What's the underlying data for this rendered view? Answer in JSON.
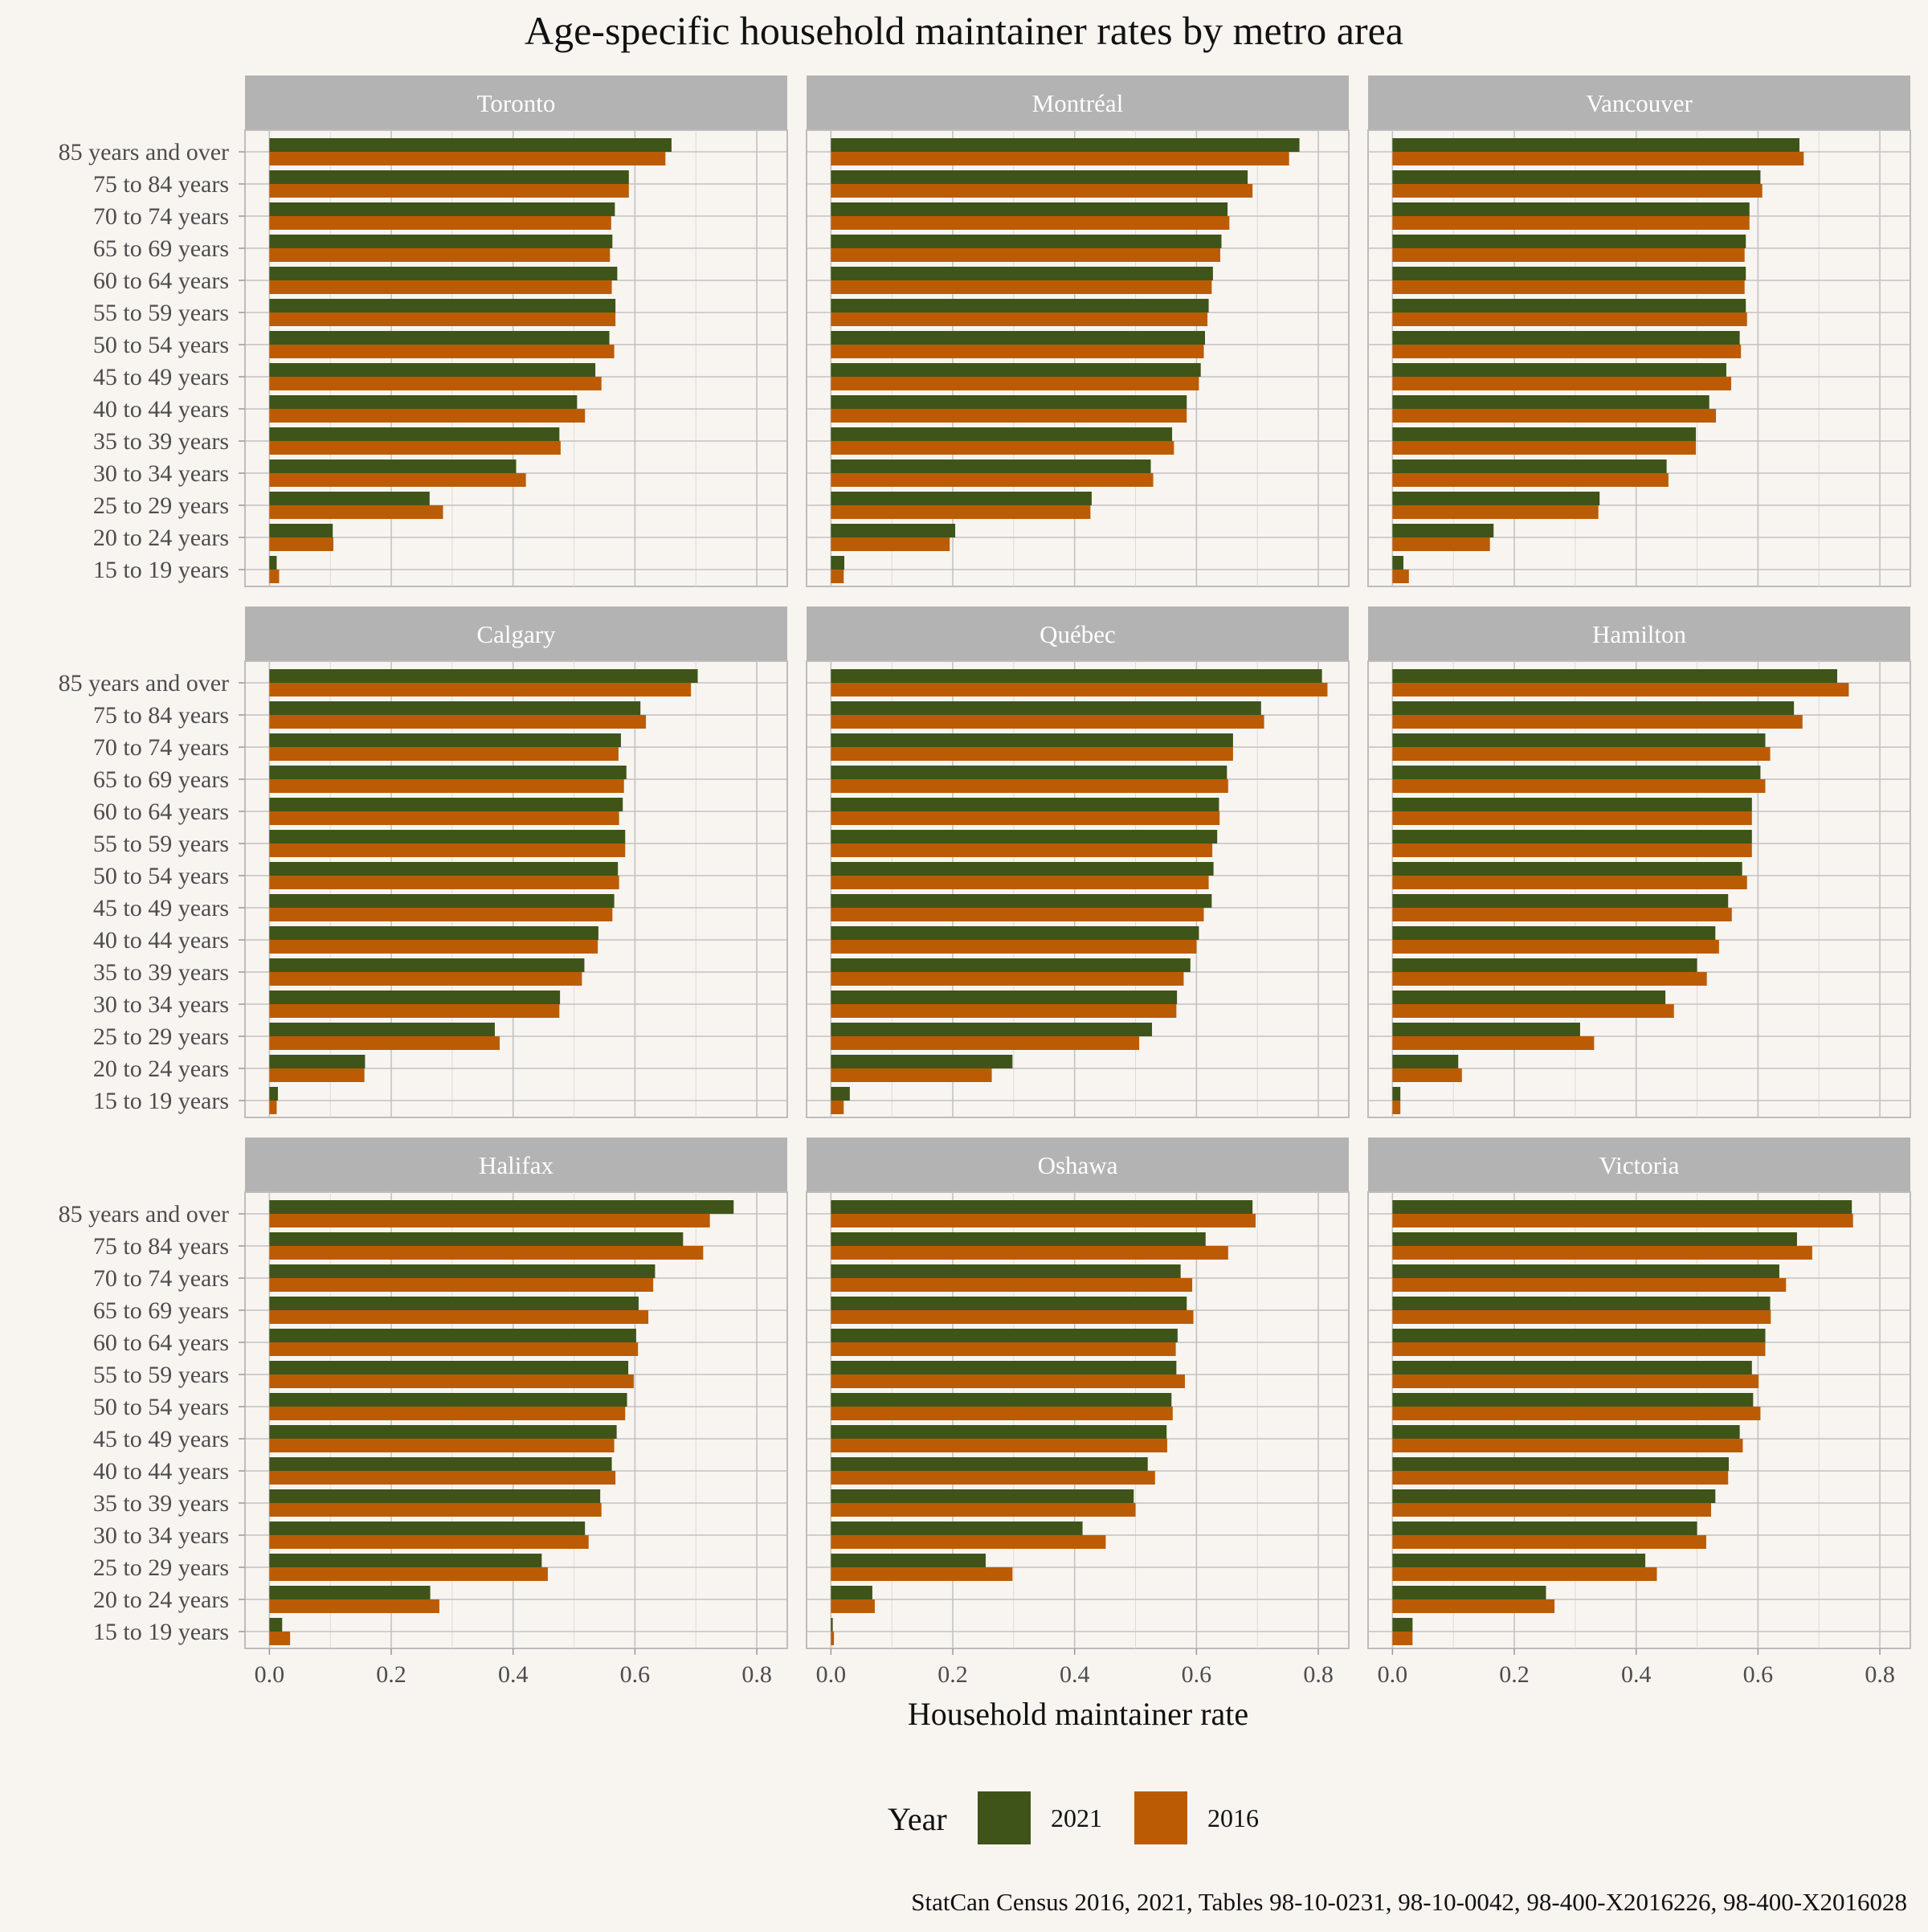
{
  "chart_data": {
    "type": "bar",
    "orientation": "horizontal",
    "title": "Age-specific household maintainer rates by metro area",
    "xlabel": "Household maintainer rate",
    "ylabel": "",
    "caption": "StatCan Census 2016, 2021, Tables 98-10-0231, 98-10-0042, 98-400-X2016226, 98-400-X2016028",
    "xlim": [
      -0.04,
      0.85
    ],
    "x_ticks": [
      0.0,
      0.2,
      0.4,
      0.6,
      0.8
    ],
    "x_tick_labels": [
      "0.0",
      "0.2",
      "0.4",
      "0.6",
      "0.8"
    ],
    "grid": true,
    "legend": {
      "title": "Year",
      "position": "bottom",
      "entries": [
        {
          "name": "2021",
          "color": "#3f5419"
        },
        {
          "name": "2016",
          "color": "#bb5c05"
        }
      ]
    },
    "categories": [
      "85 years and over",
      "75 to 84 years",
      "70 to 74 years",
      "65 to 69 years",
      "60 to 64 years",
      "55 to 59 years",
      "50 to 54 years",
      "45 to 49 years",
      "40 to 44 years",
      "35 to 39 years",
      "30 to 34 years",
      "25 to 29 years",
      "20 to 24 years",
      "15 to 19 years"
    ],
    "series_names": [
      "2021",
      "2016"
    ],
    "colors": {
      "2021": "#3f5419",
      "2016": "#bb5c05",
      "strip": "#b3b3b3",
      "grid": "#c2c2c2"
    },
    "panels": [
      {
        "name": "Toronto",
        "values_2021": [
          0.66,
          0.59,
          0.567,
          0.563,
          0.571,
          0.568,
          0.558,
          0.535,
          0.505,
          0.476,
          0.405,
          0.263,
          0.104,
          0.012
        ],
        "values_2016": [
          0.65,
          0.59,
          0.561,
          0.559,
          0.562,
          0.568,
          0.566,
          0.545,
          0.518,
          0.478,
          0.421,
          0.285,
          0.105,
          0.016
        ]
      },
      {
        "name": "Montréal",
        "values_2021": [
          0.769,
          0.684,
          0.651,
          0.641,
          0.627,
          0.62,
          0.614,
          0.607,
          0.584,
          0.56,
          0.525,
          0.428,
          0.204,
          0.022
        ],
        "values_2016": [
          0.752,
          0.692,
          0.654,
          0.639,
          0.625,
          0.618,
          0.612,
          0.604,
          0.584,
          0.563,
          0.529,
          0.426,
          0.195,
          0.021
        ],
        "note": ""
      },
      {
        "name": "Vancouver",
        "values_2021": [
          0.668,
          0.604,
          0.586,
          0.58,
          0.58,
          0.58,
          0.57,
          0.548,
          0.52,
          0.498,
          0.45,
          0.34,
          0.166,
          0.018
        ],
        "values_2016": [
          0.675,
          0.607,
          0.586,
          0.578,
          0.578,
          0.582,
          0.572,
          0.556,
          0.531,
          0.498,
          0.453,
          0.338,
          0.16,
          0.027
        ]
      },
      {
        "name": "Calgary",
        "values_2021": [
          0.703,
          0.609,
          0.577,
          0.586,
          0.58,
          0.584,
          0.572,
          0.566,
          0.54,
          0.517,
          0.477,
          0.37,
          0.157,
          0.014
        ],
        "values_2016": [
          0.692,
          0.618,
          0.573,
          0.582,
          0.574,
          0.584,
          0.574,
          0.563,
          0.539,
          0.513,
          0.476,
          0.378,
          0.156,
          0.012
        ]
      },
      {
        "name": "Québec",
        "values_2021": [
          0.806,
          0.706,
          0.66,
          0.65,
          0.637,
          0.634,
          0.628,
          0.625,
          0.604,
          0.59,
          0.568,
          0.527,
          0.298,
          0.031
        ],
        "values_2016": [
          0.815,
          0.711,
          0.66,
          0.652,
          0.638,
          0.626,
          0.62,
          0.612,
          0.6,
          0.579,
          0.567,
          0.506,
          0.264,
          0.021
        ]
      },
      {
        "name": "Hamilton",
        "values_2021": [
          0.73,
          0.659,
          0.612,
          0.604,
          0.59,
          0.59,
          0.574,
          0.551,
          0.53,
          0.5,
          0.448,
          0.308,
          0.108,
          0.013
        ],
        "values_2016": [
          0.749,
          0.673,
          0.62,
          0.612,
          0.59,
          0.59,
          0.582,
          0.557,
          0.536,
          0.516,
          0.462,
          0.331,
          0.114,
          0.013
        ]
      },
      {
        "name": "Halifax",
        "values_2021": [
          0.762,
          0.679,
          0.633,
          0.606,
          0.602,
          0.589,
          0.587,
          0.57,
          0.562,
          0.543,
          0.518,
          0.447,
          0.264,
          0.021
        ],
        "values_2016": [
          0.723,
          0.712,
          0.63,
          0.622,
          0.605,
          0.598,
          0.584,
          0.566,
          0.568,
          0.545,
          0.524,
          0.457,
          0.279,
          0.034
        ]
      },
      {
        "name": "Oshawa",
        "values_2021": [
          0.692,
          0.615,
          0.574,
          0.584,
          0.569,
          0.567,
          0.559,
          0.551,
          0.52,
          0.497,
          0.413,
          0.254,
          0.068,
          0.003
        ],
        "values_2016": [
          0.697,
          0.652,
          0.593,
          0.595,
          0.566,
          0.581,
          0.561,
          0.552,
          0.532,
          0.5,
          0.451,
          0.298,
          0.072,
          0.005
        ]
      },
      {
        "name": "Victoria",
        "values_2021": [
          0.754,
          0.664,
          0.635,
          0.62,
          0.612,
          0.59,
          0.592,
          0.57,
          0.552,
          0.53,
          0.5,
          0.415,
          0.252,
          0.033
        ],
        "values_2016": [
          0.756,
          0.689,
          0.646,
          0.621,
          0.612,
          0.601,
          0.604,
          0.575,
          0.551,
          0.523,
          0.515,
          0.434,
          0.266,
          0.033
        ]
      }
    ]
  }
}
